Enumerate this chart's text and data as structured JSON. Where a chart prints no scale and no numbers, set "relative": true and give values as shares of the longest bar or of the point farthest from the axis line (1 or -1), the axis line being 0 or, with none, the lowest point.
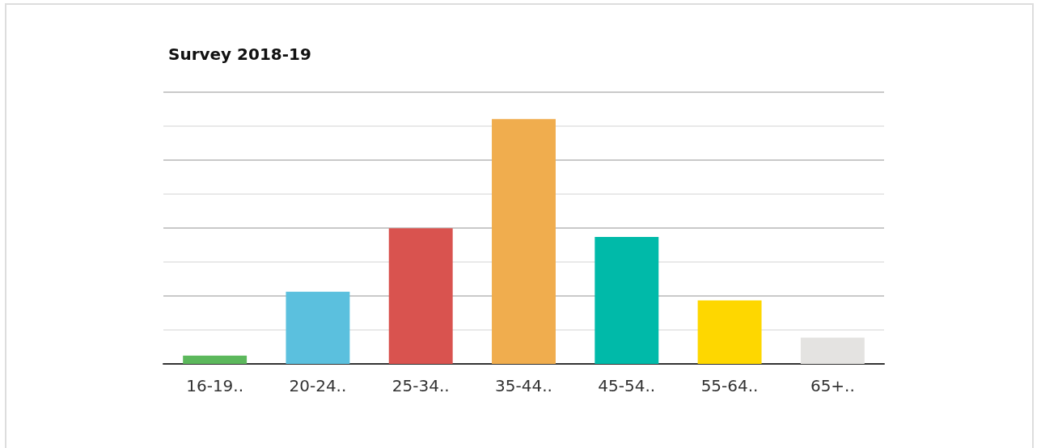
{
  "chart_data": {
    "type": "bar",
    "title": "Survey 2018-19",
    "categories": [
      "16-19..",
      "20-24..",
      "25-34..",
      "35-44..",
      "45-54..",
      "55-64..",
      "65+.."
    ],
    "values": [
      0.034,
      0.295,
      0.554,
      1,
      0.519,
      0.259,
      0.107
    ],
    "colors": [
      "#5cb85c",
      "#5bc0de",
      "#d9534f",
      "#f0ad4e",
      "#00baa9",
      "#fed700",
      "#e4e3e1"
    ],
    "relative": true,
    "grid": true
  }
}
